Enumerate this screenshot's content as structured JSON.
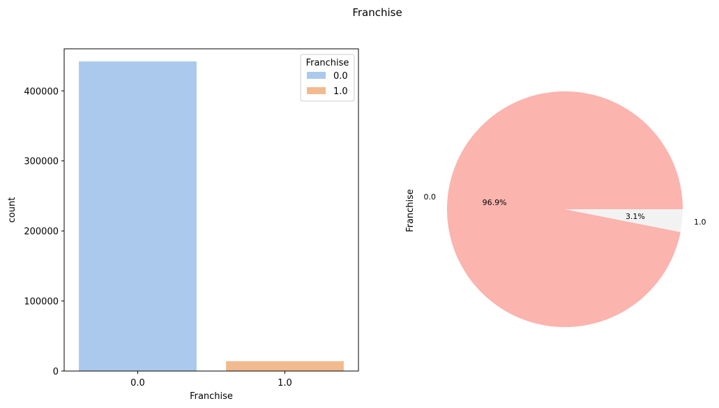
{
  "figure": {
    "suptitle": "Franchise"
  },
  "chart_data": [
    {
      "type": "bar",
      "xlabel": "Franchise",
      "ylabel": "count",
      "categories": [
        "0.0",
        "1.0"
      ],
      "values": [
        442000,
        14000
      ],
      "ylim": [
        0,
        460000
      ],
      "yticks": [
        0,
        100000,
        200000,
        300000,
        400000
      ],
      "ytick_labels": [
        "0",
        "100000",
        "200000",
        "300000",
        "400000"
      ],
      "colors": [
        "#abc9ec",
        "#f1bb8f"
      ],
      "legend": {
        "title": "Franchise",
        "placement": "top-right",
        "entries": [
          "0.0",
          "1.0"
        ]
      },
      "grid": false
    },
    {
      "type": "pie",
      "ylabel": "Franchise",
      "labels": [
        "0.0",
        "1.0"
      ],
      "values": [
        96.9,
        3.1
      ],
      "pct_labels": [
        "96.9%",
        "3.1%"
      ],
      "colors": [
        "#fbb4ae",
        "#f2f2f2"
      ]
    }
  ]
}
